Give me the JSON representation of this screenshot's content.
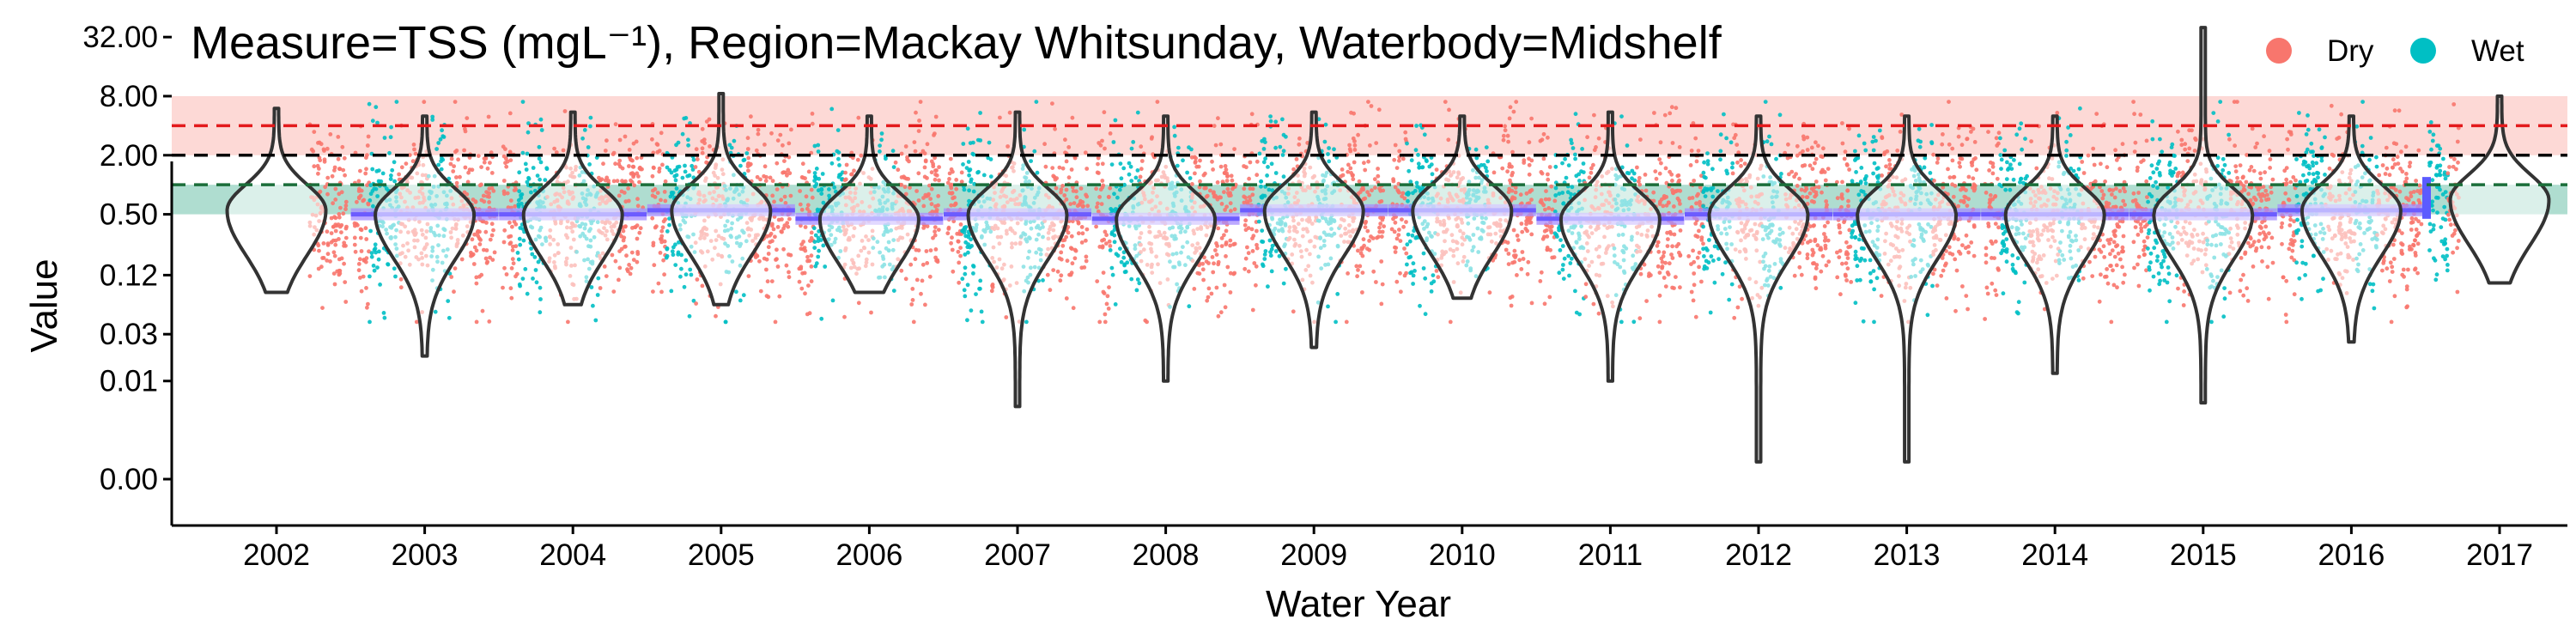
{
  "chart_data": {
    "type": "violin",
    "title": "Measure=TSS (mgL⁻¹), Region=Mackay Whitsunday, Waterbody=Midshelf",
    "xlabel": "Water Year",
    "ylabel": "Value",
    "y_scale": "log",
    "y_ticks": [
      0.001,
      0.01,
      0.03,
      0.12,
      0.5,
      2.0,
      8.0,
      32.0
    ],
    "y_tick_labels": [
      "0.00",
      "0.01",
      "0.03",
      "0.12",
      "0.50",
      "2.00",
      "8.00",
      "32.00"
    ],
    "categories": [
      "2002",
      "2003",
      "2004",
      "2005",
      "2006",
      "2007",
      "2008",
      "2009",
      "2010",
      "2011",
      "2012",
      "2013",
      "2014",
      "2015",
      "2016",
      "2017"
    ],
    "legend": [
      {
        "name": "Dry",
        "color": "#F8766D"
      },
      {
        "name": "Wet",
        "color": "#00BFC4"
      }
    ],
    "legend_position": "top-right",
    "guidelines": [
      {
        "value": 4.0,
        "color": "#e31a1c",
        "style": "dashed"
      },
      {
        "value": 2.0,
        "color": "#000000",
        "style": "dashed"
      },
      {
        "value": 1.0,
        "color": "#1b6e3a",
        "style": "dashed"
      }
    ],
    "bands": [
      {
        "from": 2.0,
        "to": 8.0,
        "color": "#F8766D"
      },
      {
        "from": 0.5,
        "to": 1.0,
        "color": "#1b9e77"
      }
    ],
    "violins": [
      {
        "year": "2002",
        "min": 0.08,
        "max": 6.0,
        "median": 0.55
      },
      {
        "year": "2003",
        "min": 0.018,
        "max": 5.0,
        "median": 0.5
      },
      {
        "year": "2004",
        "min": 0.06,
        "max": 5.5,
        "median": 0.5
      },
      {
        "year": "2005",
        "min": 0.06,
        "max": 8.5,
        "median": 0.55
      },
      {
        "year": "2006",
        "min": 0.08,
        "max": 5.0,
        "median": 0.45
      },
      {
        "year": "2007",
        "min": 0.0055,
        "max": 5.5,
        "median": 0.5
      },
      {
        "year": "2008",
        "min": 0.01,
        "max": 5.0,
        "median": 0.45
      },
      {
        "year": "2009",
        "min": 0.022,
        "max": 5.5,
        "median": 0.55
      },
      {
        "year": "2010",
        "min": 0.07,
        "max": 5.0,
        "median": 0.55
      },
      {
        "year": "2011",
        "min": 0.01,
        "max": 5.5,
        "median": 0.45
      },
      {
        "year": "2012",
        "min": 0.0015,
        "max": 5.0,
        "median": 0.5
      },
      {
        "year": "2013",
        "min": 0.0015,
        "max": 5.0,
        "median": 0.5
      },
      {
        "year": "2014",
        "min": 0.012,
        "max": 5.0,
        "median": 0.5
      },
      {
        "year": "2015",
        "min": 0.006,
        "max": 40.0,
        "median": 0.5
      },
      {
        "year": "2016",
        "min": 0.025,
        "max": 5.0,
        "median": 0.55
      },
      {
        "year": "2017",
        "min": 0.1,
        "max": 8.0,
        "median": 0.7
      }
    ],
    "grid": false
  }
}
